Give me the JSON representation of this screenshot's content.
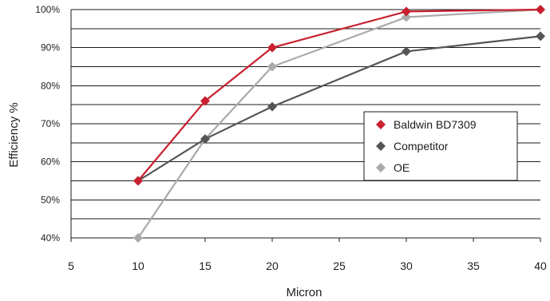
{
  "chart_data": {
    "type": "line",
    "title": "",
    "xlabel": "Micron",
    "ylabel": "Efficiency %",
    "xlim": [
      5,
      40
    ],
    "ylim": [
      40,
      100
    ],
    "x_ticks": [
      "5",
      "10",
      "15",
      "20",
      "25",
      "30",
      "35",
      "40"
    ],
    "y_ticks": [
      "40%",
      "50%",
      "60%",
      "70%",
      "80%",
      "90%",
      "100%"
    ],
    "grid": true,
    "legend_position": "right",
    "series": [
      {
        "name": "Baldwin BD7309",
        "color": "#c8202f",
        "marker": "diamond",
        "x": [
          10,
          15,
          20,
          30,
          40
        ],
        "y": [
          55,
          76,
          90,
          99.5,
          100
        ]
      },
      {
        "name": "Competitor",
        "color": "#555555",
        "marker": "diamond",
        "x": [
          10,
          15,
          20,
          30,
          40
        ],
        "y": [
          55,
          66,
          74.5,
          89,
          93
        ]
      },
      {
        "name": "OE",
        "color": "#aaaaaa",
        "marker": "diamond",
        "x": [
          10,
          15,
          20,
          30,
          40
        ],
        "y": [
          40,
          66,
          85,
          98,
          100
        ]
      }
    ]
  }
}
